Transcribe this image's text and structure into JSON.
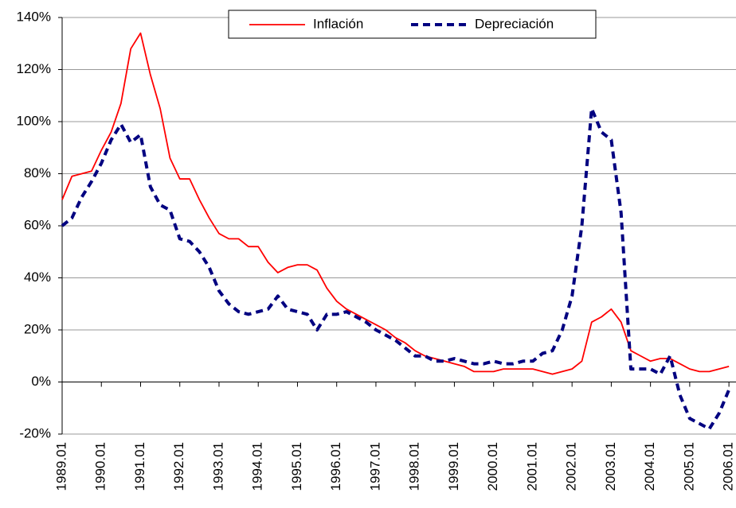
{
  "chart_data": {
    "type": "line",
    "x": [
      1989,
      1989.25,
      1989.5,
      1989.75,
      1990,
      1990.25,
      1990.5,
      1990.75,
      1991,
      1991.25,
      1991.5,
      1991.75,
      1992,
      1992.25,
      1992.5,
      1992.75,
      1993,
      1993.25,
      1993.5,
      1993.75,
      1994,
      1994.25,
      1994.5,
      1994.75,
      1995,
      1995.25,
      1995.5,
      1995.75,
      1996,
      1996.25,
      1996.5,
      1996.75,
      1997,
      1997.25,
      1997.5,
      1997.75,
      1998,
      1998.25,
      1998.5,
      1998.75,
      1999,
      1999.25,
      1999.5,
      1999.75,
      2000,
      2000.25,
      2000.5,
      2000.75,
      2001,
      2001.25,
      2001.5,
      2001.75,
      2002,
      2002.25,
      2002.5,
      2002.75,
      2003,
      2003.25,
      2003.5,
      2003.75,
      2004,
      2004.25,
      2004.5,
      2004.75,
      2005,
      2005.25,
      2005.5,
      2005.75,
      2006
    ],
    "series": [
      {
        "name": "Inflación",
        "color": "#ff0000",
        "dash": false,
        "values": [
          70,
          79,
          80,
          81,
          89,
          96,
          107,
          128,
          134,
          118,
          105,
          86,
          78,
          78,
          70,
          63,
          57,
          55,
          55,
          52,
          52,
          46,
          42,
          44,
          45,
          45,
          43,
          36,
          31,
          28,
          26,
          24,
          22,
          20,
          17,
          15,
          12,
          10,
          9,
          8,
          7,
          6,
          4,
          4,
          4,
          5,
          5,
          5,
          5,
          4,
          3,
          4,
          5,
          8,
          23,
          25,
          28,
          23,
          12,
          10,
          8,
          9,
          9,
          7,
          5,
          4,
          4,
          5,
          6
        ]
      },
      {
        "name": "Depreciación",
        "color": "#000080",
        "dash": true,
        "values": [
          60,
          63,
          71,
          77,
          84,
          93,
          99,
          92,
          95,
          75,
          68,
          66,
          55,
          54,
          50,
          44,
          35,
          30,
          27,
          26,
          27,
          28,
          33,
          28,
          27,
          26,
          20,
          26,
          26,
          27,
          25,
          23,
          20,
          18,
          16,
          13,
          10,
          10,
          8,
          8,
          9,
          8,
          7,
          7,
          8,
          7,
          7,
          8,
          8,
          11,
          12,
          20,
          33,
          60,
          105,
          96,
          93,
          65,
          5,
          5,
          5,
          3,
          10,
          -5,
          -14,
          -16,
          -18,
          -12,
          -3
        ]
      }
    ],
    "xlim": [
      1989,
      2006.18
    ],
    "xticks": [
      {
        "value": 1989,
        "label": "1989.01"
      },
      {
        "value": 1990,
        "label": "1990.01"
      },
      {
        "value": 1991,
        "label": "1991.01"
      },
      {
        "value": 1992,
        "label": "1992.01"
      },
      {
        "value": 1993,
        "label": "1993.01"
      },
      {
        "value": 1994,
        "label": "1994.01"
      },
      {
        "value": 1995,
        "label": "1995.01"
      },
      {
        "value": 1996,
        "label": "1996.01"
      },
      {
        "value": 1997,
        "label": "1997.01"
      },
      {
        "value": 1998,
        "label": "1998.01"
      },
      {
        "value": 1999,
        "label": "1999.01"
      },
      {
        "value": 2000,
        "label": "2000.01"
      },
      {
        "value": 2001,
        "label": "2001.01"
      },
      {
        "value": 2002,
        "label": "2002.01"
      },
      {
        "value": 2003,
        "label": "2003.01"
      },
      {
        "value": 2004,
        "label": "2004.01"
      },
      {
        "value": 2005,
        "label": "2005.01"
      },
      {
        "value": 2006,
        "label": "2006.01"
      }
    ],
    "ylim": [
      -20,
      140
    ],
    "yticks": [
      {
        "value": 140,
        "label": "140%"
      },
      {
        "value": 120,
        "label": "120%"
      },
      {
        "value": 100,
        "label": "100%"
      },
      {
        "value": 80,
        "label": "80%"
      },
      {
        "value": 60,
        "label": "60%"
      },
      {
        "value": 40,
        "label": "40%"
      },
      {
        "value": 20,
        "label": "20%"
      },
      {
        "value": 0,
        "label": "0%"
      },
      {
        "value": -20,
        "label": "-20%"
      }
    ],
    "grid": true
  }
}
